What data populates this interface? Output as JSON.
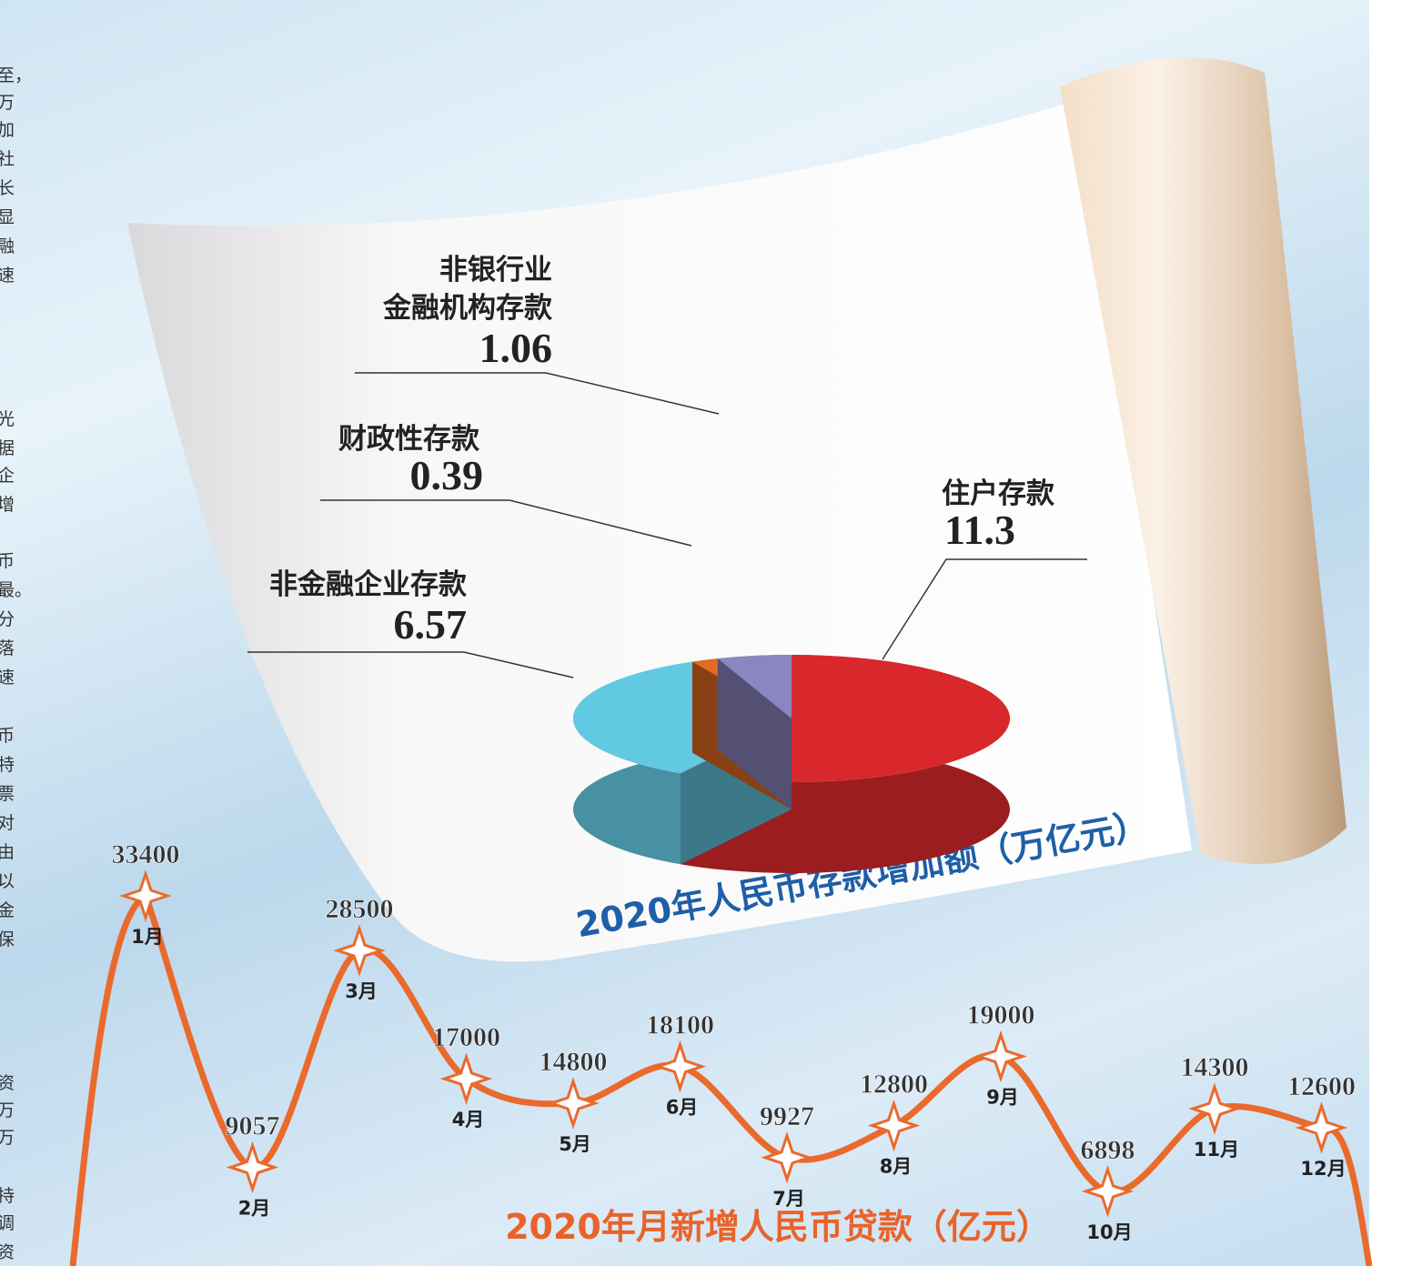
{
  "chart_data": [
    {
      "type": "pie3d",
      "title": "2020年人民币存款增加额（万亿元）",
      "categories": [
        "住户存款",
        "非金融企业存款",
        "财政性存款",
        "非银行业\n金融机构存款"
      ],
      "values": [
        11.3,
        6.57,
        0.39,
        1.06
      ],
      "colors": [
        "#d8282b",
        "#62c9e3",
        "#e36b22",
        "#8b86c2"
      ]
    },
    {
      "type": "line",
      "title": "2020年月新增人民币贷款（亿元）",
      "categories": [
        "1月",
        "2月",
        "3月",
        "4月",
        "5月",
        "6月",
        "7月",
        "8月",
        "9月",
        "10月",
        "11月",
        "12月"
      ],
      "values": [
        33400,
        9057,
        28500,
        17000,
        14800,
        18100,
        9927,
        12800,
        19000,
        6898,
        14300,
        12600
      ],
      "color": "#ea6a2c"
    }
  ],
  "margin_text": [
    "至，",
    "万",
    "加",
    "社",
    "长",
    "显",
    "融",
    "速",
    "光",
    "据",
    "企",
    "增",
    "币",
    "最。",
    "分",
    "落",
    "速",
    "币",
    "特",
    "票",
    "对",
    "由",
    "以",
    "金",
    "保",
    "资",
    "万",
    "万",
    "持",
    "调",
    "资"
  ]
}
